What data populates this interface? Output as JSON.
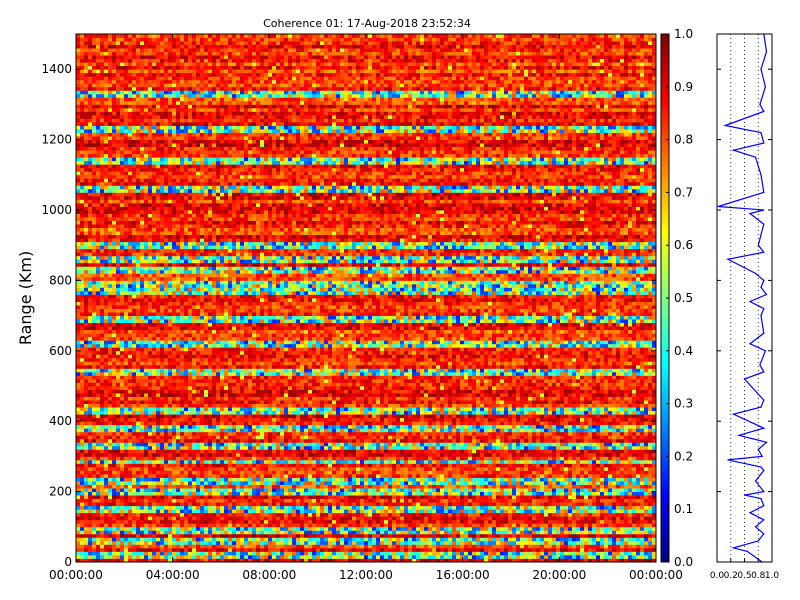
{
  "chart_data": [
    {
      "type": "heatmap",
      "title": "Coherence 01: 17-Aug-2018 23:52:34",
      "xlabel": "",
      "ylabel": "Range (Km)",
      "xlim": [
        "00:00:00",
        "00:00:00"
      ],
      "ylim": [
        0,
        1500
      ],
      "x_ticks": [
        "00:00:00",
        "04:00:00",
        "08:00:00",
        "12:00:00",
        "16:00:00",
        "20:00:00",
        "00:00:00"
      ],
      "y_ticks": [
        0,
        200,
        400,
        600,
        800,
        1000,
        1200,
        1400
      ],
      "colormap": "jet",
      "clim": [
        0.0,
        1.0
      ],
      "colorbar_ticks": [
        "0.0",
        "0.1",
        "0.2",
        "0.3",
        "0.4",
        "0.5",
        "0.6",
        "0.7",
        "0.8",
        "0.9",
        "1.0"
      ],
      "low_coherence_bands_km": [
        20,
        60,
        90,
        150,
        200,
        230,
        285,
        330,
        380,
        430,
        540,
        620,
        690,
        770,
        790,
        830,
        860,
        900,
        1060,
        1140,
        1230,
        1330
      ],
      "typical_value": 0.85
    },
    {
      "type": "line",
      "description_panel": "mean profile",
      "xlim": [
        0.0,
        1.0
      ],
      "x_ticks": [
        "0.0",
        "0.2",
        "0.5",
        "0.8",
        "1.0"
      ],
      "ylim": [
        0,
        1500
      ],
      "grid": "vertical dotted",
      "series": [
        {
          "color": "#0000ff",
          "y": [
            0,
            30,
            40,
            60,
            80,
            100,
            120,
            140,
            160,
            180,
            190,
            200,
            230,
            260,
            270,
            290,
            300,
            320,
            340,
            360,
            380,
            420,
            440,
            460,
            520,
            540,
            560,
            600,
            620,
            650,
            700,
            720,
            740,
            760,
            780,
            800,
            820,
            860,
            880,
            900,
            960,
            990,
            1000,
            1010,
            1050,
            1100,
            1150,
            1170,
            1190,
            1220,
            1240,
            1280,
            1300,
            1350,
            1400,
            1450,
            1500
          ],
          "x": [
            0.82,
            0.55,
            0.3,
            0.75,
            0.85,
            0.7,
            0.85,
            0.6,
            0.85,
            0.8,
            0.5,
            0.85,
            0.7,
            0.85,
            0.8,
            0.2,
            0.82,
            0.75,
            0.9,
            0.4,
            0.85,
            0.3,
            0.8,
            0.85,
            0.5,
            0.85,
            0.78,
            0.88,
            0.6,
            0.85,
            0.8,
            0.85,
            0.6,
            0.9,
            0.8,
            0.85,
            0.7,
            0.2,
            0.85,
            0.75,
            0.85,
            0.6,
            0.85,
            0.02,
            0.85,
            0.8,
            0.7,
            0.3,
            0.85,
            0.8,
            0.15,
            0.85,
            0.78,
            0.88,
            0.8,
            0.9,
            0.85
          ]
        }
      ]
    }
  ]
}
